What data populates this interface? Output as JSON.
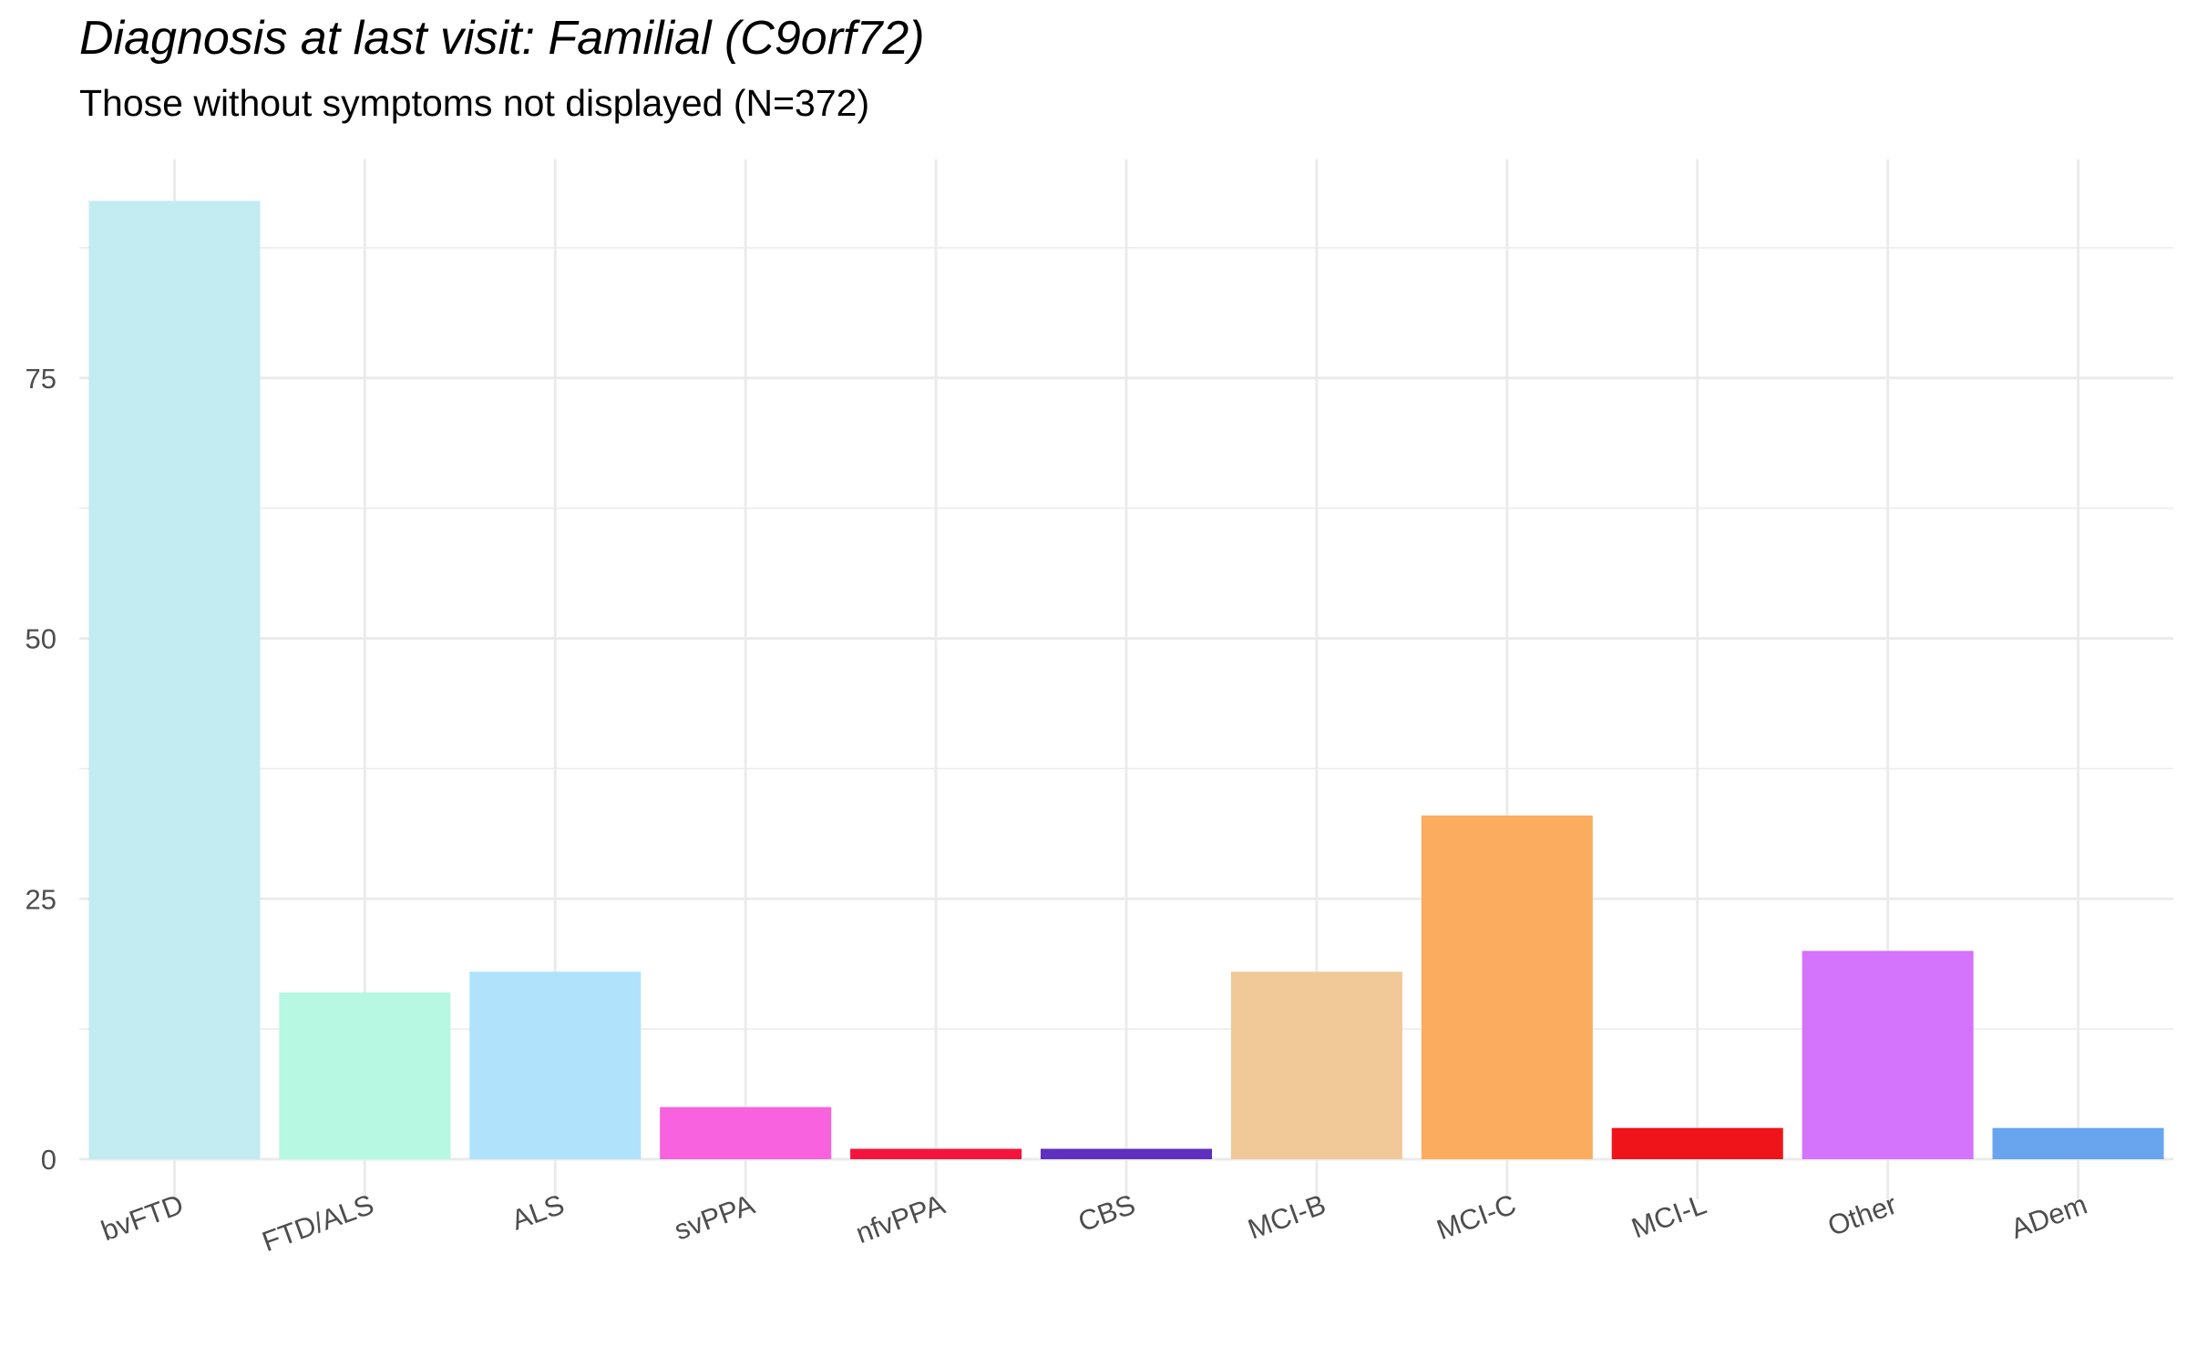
{
  "chart_data": {
    "type": "bar",
    "title": "Diagnosis at last visit: Familial (C9orf72)",
    "subtitle": "Those without symptoms not displayed (N=372)",
    "xlabel": "",
    "ylabel": "",
    "categories": [
      "bvFTD",
      "FTD/ALS",
      "ALS",
      "svPPA",
      "nfvPPA",
      "CBS",
      "MCI-B",
      "MCI-C",
      "MCI-L",
      "Other",
      "ADem"
    ],
    "values": [
      92,
      16,
      18,
      5,
      1,
      1,
      18,
      33,
      3,
      20,
      3
    ],
    "colors": [
      "#c2ebf2",
      "#b6f8e1",
      "#b0e2fc",
      "#f862de",
      "#f5153c",
      "#5f2fbf",
      "#f1c897",
      "#fbac5e",
      "#ee1419",
      "#d473fb",
      "#69a5ef"
    ],
    "ylim": [
      0,
      96
    ],
    "yticks": [
      "0",
      "25",
      "50",
      "75"
    ],
    "grid": true,
    "legend": "none"
  }
}
